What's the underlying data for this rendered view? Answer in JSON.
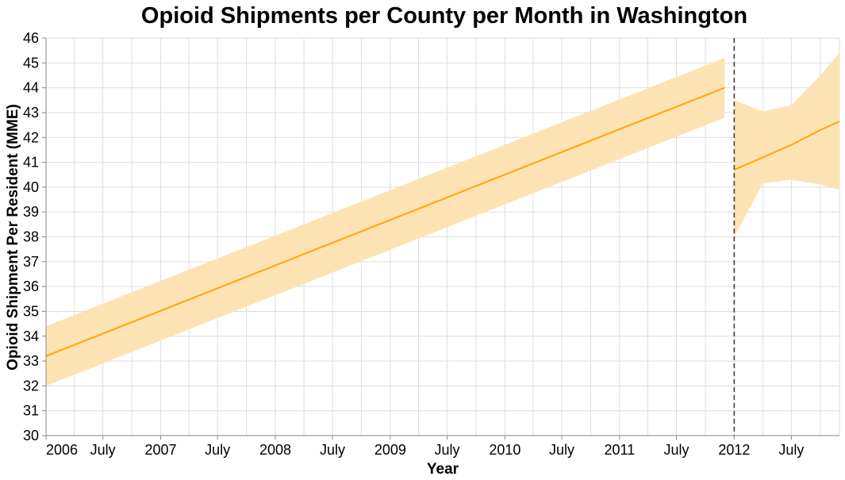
{
  "chart_data": {
    "type": "line",
    "title": "Opioid Shipments per County per Month in Washington",
    "xlabel": "Year",
    "ylabel": "Opioid Shipment Per Resident (MME)",
    "ylim": [
      30,
      46
    ],
    "xlim": [
      "2006-01-01",
      "2012-12-01"
    ],
    "grid": true,
    "x_ticks": [
      {
        "date": "2006-01-01",
        "label": "2006"
      },
      {
        "date": "2006-07-01",
        "label": "July"
      },
      {
        "date": "2007-01-01",
        "label": "2007"
      },
      {
        "date": "2007-07-01",
        "label": "July"
      },
      {
        "date": "2008-01-01",
        "label": "2008"
      },
      {
        "date": "2008-07-01",
        "label": "July"
      },
      {
        "date": "2009-01-01",
        "label": "2009"
      },
      {
        "date": "2009-07-01",
        "label": "July"
      },
      {
        "date": "2010-01-01",
        "label": "2010"
      },
      {
        "date": "2010-07-01",
        "label": "July"
      },
      {
        "date": "2011-01-01",
        "label": "2011"
      },
      {
        "date": "2011-07-01",
        "label": "July"
      },
      {
        "date": "2012-01-01",
        "label": "2012"
      },
      {
        "date": "2012-07-01",
        "label": "July"
      }
    ],
    "y_ticks": [
      30,
      31,
      32,
      33,
      34,
      35,
      36,
      37,
      38,
      39,
      40,
      41,
      42,
      43,
      44,
      45,
      46
    ],
    "series": [
      {
        "segment": "before",
        "x": [
          "2006-01-01",
          "2011-12-01"
        ],
        "y": [
          33.2,
          44.0
        ],
        "ci_lower": [
          32.0,
          42.8
        ],
        "ci_upper": [
          34.4,
          45.2
        ]
      },
      {
        "segment": "after",
        "x": [
          "2012-01-01",
          "2012-04-01",
          "2012-07-01",
          "2012-10-01",
          "2012-12-01"
        ],
        "y": [
          40.7,
          41.2,
          41.7,
          42.3,
          42.65
        ],
        "ci_lower": [
          38.0,
          40.15,
          40.3,
          40.1,
          39.9
        ],
        "ci_upper": [
          43.5,
          43.05,
          43.3,
          44.5,
          45.4
        ]
      }
    ],
    "reference_line": {
      "x": "2012-01-01",
      "style": "dashed"
    },
    "colors": {
      "line": "#ffa500",
      "band": "#fde3b3",
      "reference": "#333333",
      "grid": "#dddddd",
      "axis": "#888888"
    }
  }
}
